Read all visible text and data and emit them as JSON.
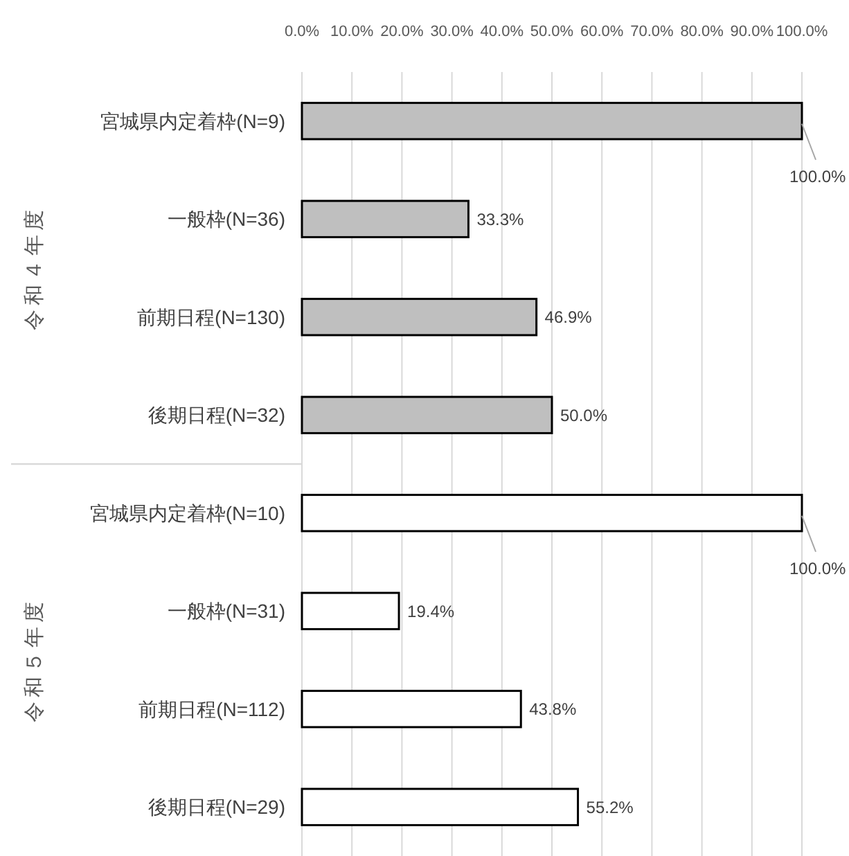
{
  "chart_data": [
    {
      "type": "bar",
      "orientation": "horizontal",
      "ylabel": "令和４年度",
      "categories": [
        "宮城県内定着枠(N=9)",
        "一般枠(N=36)",
        "前期日程(N=130)",
        "後期日程(N=32)"
      ],
      "values": [
        100,
        33.3,
        46.9,
        50.0
      ],
      "value_labels": [
        "100.0%",
        "33.3%",
        "46.9%",
        "50.0%"
      ],
      "color": "#bfbfbf",
      "xlim": [
        0,
        100
      ],
      "xticks": [
        {
          "value": 0,
          "label": "0.0%"
        },
        {
          "value": 10,
          "label": "10.0%"
        },
        {
          "value": 20,
          "label": "20.0%"
        },
        {
          "value": 30,
          "label": "30.0%"
        },
        {
          "value": 40,
          "label": "40.0%"
        },
        {
          "value": 50,
          "label": "50.0%"
        },
        {
          "value": 60,
          "label": "60.0%"
        },
        {
          "value": 70,
          "label": "70.0%"
        },
        {
          "value": 80,
          "label": "80.0%"
        },
        {
          "value": 90,
          "label": "90.0%"
        },
        {
          "value": 100,
          "label": "100.0%"
        }
      ],
      "grid": "x"
    },
    {
      "type": "bar",
      "orientation": "horizontal",
      "ylabel": "令和５年度",
      "categories": [
        "宮城県内定着枠(N=10)",
        "一般枠(N=31)",
        "前期日程(N=112)",
        "後期日程(N=29)"
      ],
      "values": [
        100,
        19.4,
        43.8,
        55.2
      ],
      "value_labels": [
        "100.0%",
        "19.4%",
        "43.8%",
        "55.2%"
      ],
      "color": "#ffffff",
      "xlim": [
        0,
        100
      ],
      "xticks": [
        0,
        10,
        20,
        30,
        40,
        50,
        60,
        70,
        80,
        90,
        100
      ],
      "grid": "x",
      "tick_labels": "y"
    }
  ]
}
